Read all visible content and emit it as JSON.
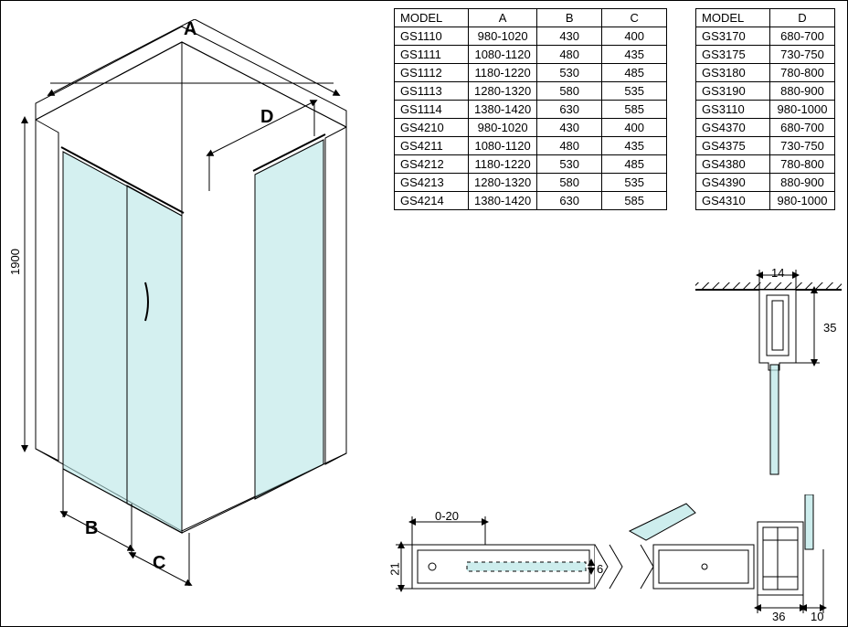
{
  "diagram": {
    "height_label": "1900",
    "dim_A": "A",
    "dim_B": "B",
    "dim_C": "C",
    "dim_D": "D",
    "glass_color": "#b8e6e6",
    "line_color": "#000000"
  },
  "table1": {
    "headers": [
      "MODEL",
      "A",
      "B",
      "C"
    ],
    "rows": [
      [
        "GS1110",
        "980-1020",
        "430",
        "400"
      ],
      [
        "GS1111",
        "1080-1120",
        "480",
        "435"
      ],
      [
        "GS1112",
        "1180-1220",
        "530",
        "485"
      ],
      [
        "GS1113",
        "1280-1320",
        "580",
        "535"
      ],
      [
        "GS1114",
        "1380-1420",
        "630",
        "585"
      ],
      [
        "GS4210",
        "980-1020",
        "430",
        "400"
      ],
      [
        "GS4211",
        "1080-1120",
        "480",
        "435"
      ],
      [
        "GS4212",
        "1180-1220",
        "530",
        "485"
      ],
      [
        "GS4213",
        "1280-1320",
        "580",
        "535"
      ],
      [
        "GS4214",
        "1380-1420",
        "630",
        "585"
      ]
    ]
  },
  "table2": {
    "headers": [
      "MODEL",
      "D"
    ],
    "rows": [
      [
        "GS3170",
        "680-700"
      ],
      [
        "GS3175",
        "730-750"
      ],
      [
        "GS3180",
        "780-800"
      ],
      [
        "GS3190",
        "880-900"
      ],
      [
        "GS3110",
        "980-1000"
      ],
      [
        "GS4370",
        "680-700"
      ],
      [
        "GS4375",
        "730-750"
      ],
      [
        "GS4380",
        "780-800"
      ],
      [
        "GS4390",
        "880-900"
      ],
      [
        "GS4310",
        "980-1000"
      ]
    ]
  },
  "detail_top": {
    "w": "14",
    "h": "35",
    "glass_color": "#b8e6e6"
  },
  "detail_bottom": {
    "range": "0-20",
    "h": "21",
    "inner_h": "6",
    "prof_w": "36",
    "prof_gap": "10",
    "glass_color": "#b8e6e6"
  }
}
